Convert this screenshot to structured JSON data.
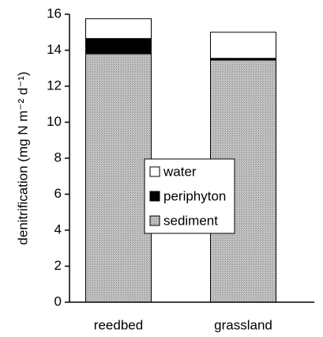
{
  "chart_data": {
    "type": "stacked_bar",
    "y_label": "denitrification (mg N m⁻² d⁻¹)",
    "categories": [
      "reedbed",
      "grassland"
    ],
    "series": [
      {
        "name": "sediment",
        "color": "#b5b5b5",
        "values": [
          13.8,
          13.45
        ]
      },
      {
        "name": "periphyton",
        "color": "#000000",
        "values": [
          0.85,
          0.1
        ]
      },
      {
        "name": "water",
        "color": "#ffffff",
        "values": [
          1.1,
          1.45
        ]
      }
    ],
    "ylim": [
      0,
      16
    ],
    "yticks": [
      0,
      2,
      4,
      6,
      8,
      10,
      12,
      14,
      16
    ],
    "legend": "center"
  }
}
